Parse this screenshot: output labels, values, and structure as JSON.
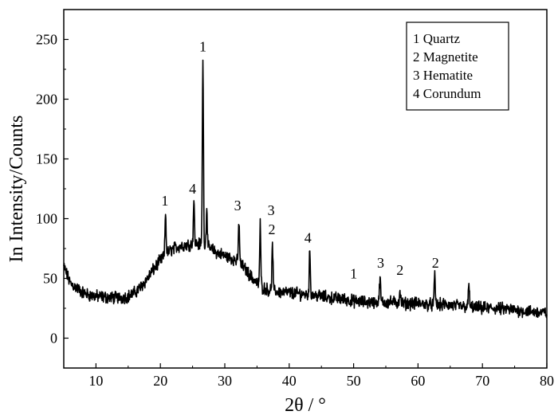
{
  "chart_data": {
    "type": "line",
    "xlabel": "2θ / °",
    "ylabel": "In Intensity/Counts",
    "xlim": [
      5,
      80
    ],
    "ylim": [
      -25,
      275
    ],
    "xticks": [
      10,
      20,
      30,
      40,
      50,
      60,
      70,
      80
    ],
    "yticks": [
      0,
      50,
      100,
      150,
      200,
      250
    ],
    "grid": false,
    "legend_position": "top-right",
    "legend": [
      {
        "label": "1 Quartz"
      },
      {
        "label": "2 Magnetite"
      },
      {
        "label": "3 Hematite"
      },
      {
        "label": "4 Corundum"
      }
    ],
    "series": [
      {
        "color": "#000000",
        "baseline": [
          [
            5,
            60
          ],
          [
            6,
            46
          ],
          [
            7,
            42
          ],
          [
            8,
            38
          ],
          [
            9,
            36
          ],
          [
            10,
            35
          ],
          [
            12,
            34
          ],
          [
            14,
            34
          ],
          [
            15,
            35
          ],
          [
            16,
            38
          ],
          [
            17,
            43
          ],
          [
            18,
            50
          ],
          [
            19,
            58
          ],
          [
            20,
            65
          ],
          [
            21,
            71
          ],
          [
            22,
            75
          ],
          [
            23,
            77
          ],
          [
            24,
            78
          ],
          [
            25,
            79
          ],
          [
            26,
            79
          ],
          [
            27,
            77
          ],
          [
            28,
            74
          ],
          [
            29,
            71
          ],
          [
            30,
            69
          ],
          [
            31,
            67
          ],
          [
            32,
            64
          ],
          [
            33,
            59
          ],
          [
            34,
            52
          ],
          [
            35,
            46
          ],
          [
            36,
            42
          ],
          [
            37,
            40
          ],
          [
            38,
            39
          ],
          [
            40,
            38
          ],
          [
            42,
            37
          ],
          [
            44,
            36
          ],
          [
            46,
            34
          ],
          [
            48,
            33
          ],
          [
            50,
            31
          ],
          [
            52,
            30
          ],
          [
            54,
            30
          ],
          [
            56,
            30
          ],
          [
            58,
            29
          ],
          [
            60,
            29
          ],
          [
            62,
            28
          ],
          [
            64,
            28
          ],
          [
            66,
            27
          ],
          [
            68,
            26
          ],
          [
            70,
            25
          ],
          [
            72,
            25
          ],
          [
            74,
            24
          ],
          [
            76,
            23
          ],
          [
            78,
            22
          ],
          [
            80,
            21
          ]
        ],
        "noise_amplitude": 4,
        "peaks": [
          {
            "x": 20.8,
            "y": 105
          },
          {
            "x": 25.2,
            "y": 115
          },
          {
            "x": 26.6,
            "y": 235
          },
          {
            "x": 27.2,
            "y": 110
          },
          {
            "x": 32.2,
            "y": 99
          },
          {
            "x": 35.5,
            "y": 95
          },
          {
            "x": 37.4,
            "y": 78
          },
          {
            "x": 43.2,
            "y": 73
          },
          {
            "x": 54.1,
            "y": 51
          },
          {
            "x": 57.2,
            "y": 40
          },
          {
            "x": 62.6,
            "y": 53
          },
          {
            "x": 67.9,
            "y": 45
          }
        ]
      }
    ],
    "annotations": [
      {
        "text": "1",
        "x": 20.7,
        "y": 111
      },
      {
        "text": "4",
        "x": 25.0,
        "y": 121
      },
      {
        "text": "1",
        "x": 26.6,
        "y": 240
      },
      {
        "text": "3",
        "x": 32.0,
        "y": 107
      },
      {
        "text": "3",
        "x": 37.2,
        "y": 103
      },
      {
        "text": "2",
        "x": 37.3,
        "y": 87
      },
      {
        "text": "4",
        "x": 42.9,
        "y": 80
      },
      {
        "text": "1",
        "x": 50.0,
        "y": 50
      },
      {
        "text": "3",
        "x": 54.2,
        "y": 59
      },
      {
        "text": "2",
        "x": 57.2,
        "y": 53
      },
      {
        "text": "2",
        "x": 62.7,
        "y": 59
      }
    ]
  }
}
